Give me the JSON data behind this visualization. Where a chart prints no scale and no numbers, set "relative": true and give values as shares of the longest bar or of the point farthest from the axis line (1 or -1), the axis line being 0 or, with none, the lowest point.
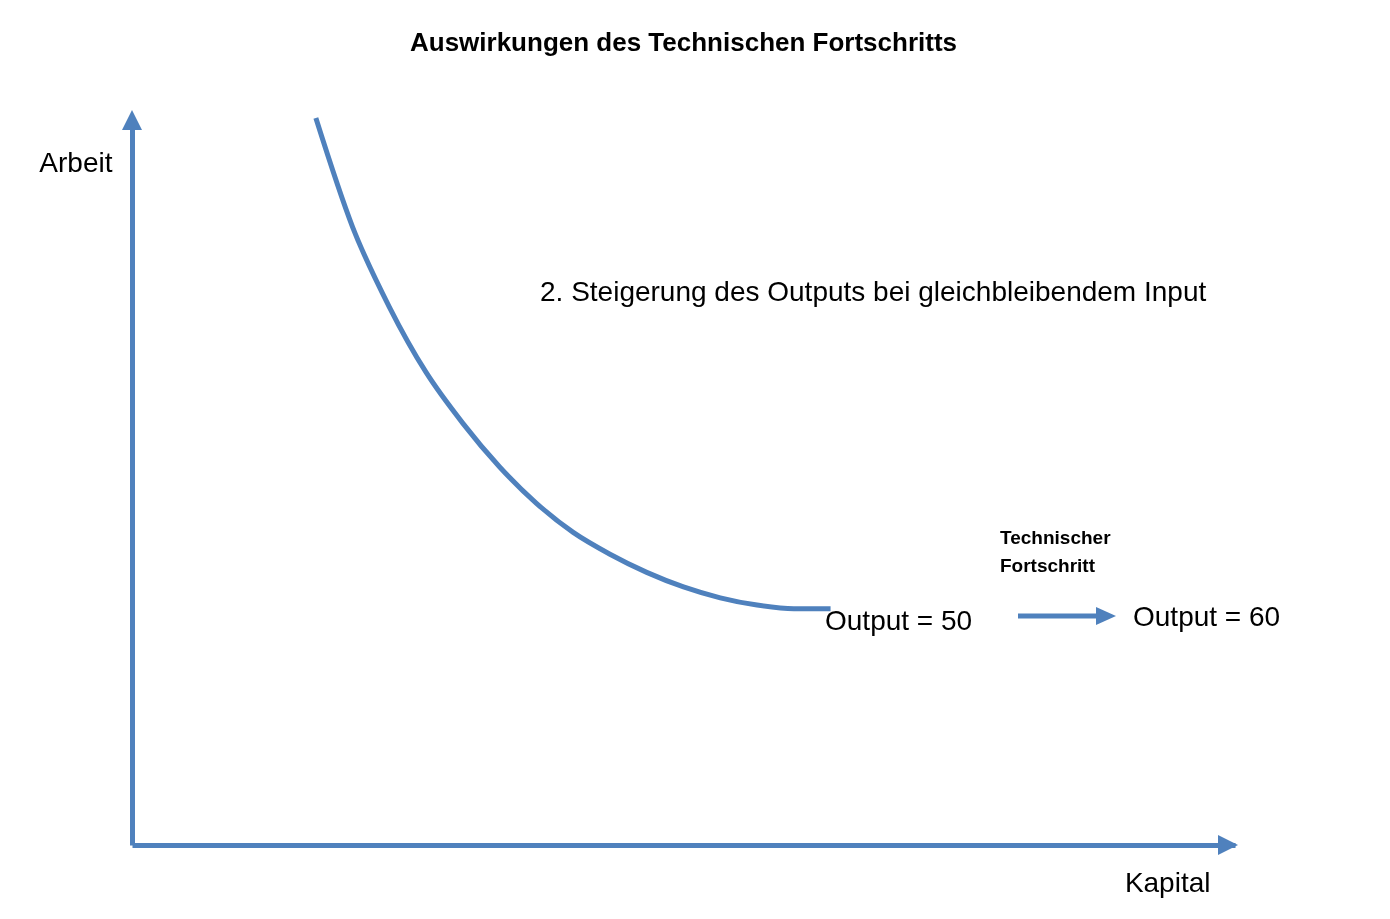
{
  "chart_data": {
    "type": "line",
    "title": "Auswirkungen des Technischen Fortschritts",
    "xlabel": "Kapital",
    "ylabel": "Arbeit",
    "relative": true,
    "tick_labels": false,
    "grid": false,
    "categories": [
      null,
      null,
      null,
      null,
      null,
      null,
      null,
      null,
      null,
      null,
      null,
      null,
      null,
      null,
      null,
      null,
      null,
      null,
      null,
      null,
      null,
      null,
      null,
      null,
      null,
      null,
      null,
      null,
      null,
      null,
      null
    ],
    "series": [
      {
        "color": "#4f81bd",
        "values": [
          null,
          null,
          null,
          null,
          null,
          1,
          0.85,
          0.74,
          0.65,
          0.58,
          0.52,
          0.47,
          0.43,
          0.4,
          0.375,
          0.355,
          0.34,
          0.33,
          0.325,
          0.325,
          null,
          null,
          null,
          null,
          null,
          null,
          null,
          null,
          null,
          null,
          null
        ]
      }
    ],
    "annotations": [
      "2. Steigerung des Outputs bei gleichbleibendem Input",
      "Output = 50",
      "Technischer Fortschritt",
      "Output = 60"
    ]
  }
}
